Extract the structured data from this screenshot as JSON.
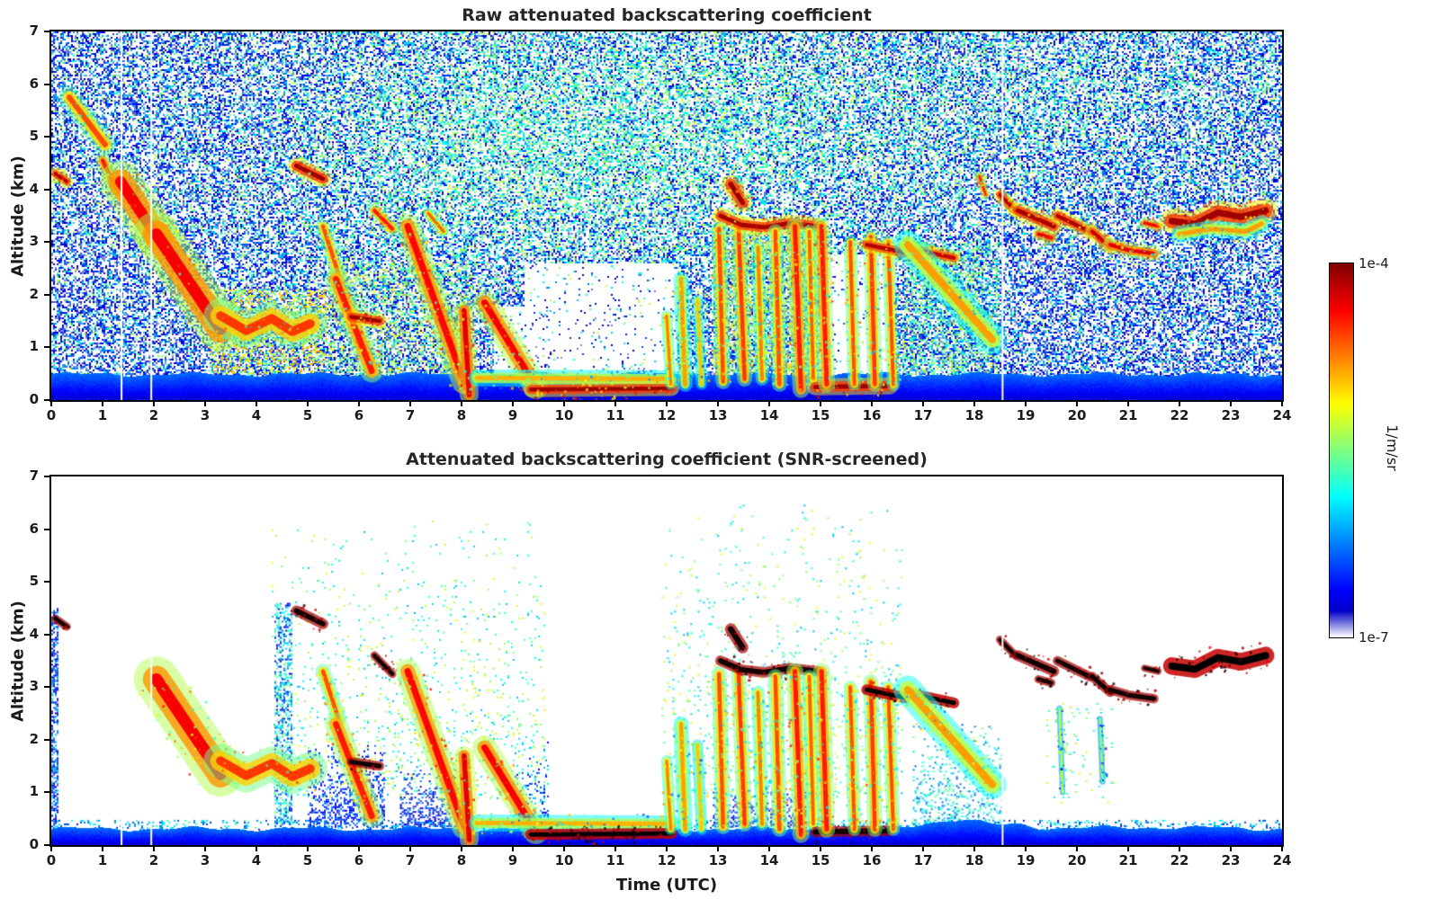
{
  "chart_data": {
    "type": "heatmap",
    "description": "Lidar attenuated backscatter time-height curtain plots, jet colormap with white floor",
    "panels": [
      {
        "id": "raw",
        "title": "Raw attenuated backscattering coefficient"
      },
      {
        "id": "screened",
        "title": "Attenuated backscattering coefficient (SNR-screened)"
      }
    ],
    "xlabel": "Time (UTC)",
    "ylabel": "Altitude (km)",
    "xlim": [
      0,
      24
    ],
    "ylim": [
      0,
      7
    ],
    "xticks": [
      "0",
      "1",
      "2",
      "3",
      "4",
      "5",
      "6",
      "7",
      "8",
      "9",
      "10",
      "11",
      "12",
      "13",
      "14",
      "15",
      "16",
      "17",
      "18",
      "19",
      "20",
      "21",
      "22",
      "23",
      "24"
    ],
    "yticks": [
      "0",
      "1",
      "2",
      "3",
      "4",
      "5",
      "6",
      "7"
    ],
    "colorbar": {
      "label": "1/m/sr",
      "max": "1e-4",
      "min": "1e-7",
      "colormap": "jet-white-floor"
    },
    "gaps": [
      1.37,
      1.95,
      18.55
    ],
    "surface_band": {
      "top": {
        "h": 0.48,
        "bumps": []
      },
      "bottom": {
        "h": 0.3,
        "bumps": [
          {
            "cx": 17.6,
            "s": 0.9,
            "a": 0.16
          },
          {
            "cx": 18.9,
            "s": 0.35,
            "a": 0.07
          },
          {
            "cx": 21.5,
            "s": 1.5,
            "a": 0.03
          }
        ]
      }
    },
    "noise": {
      "top": {
        "base_p": 0.52,
        "white_holes": [
          {
            "x": [
              9.2,
              12.2
            ],
            "y": [
              0,
              2.6
            ]
          },
          {
            "x": [
              8.6,
              9.2
            ],
            "y": [
              0,
              1.8
            ]
          },
          {
            "x": [
              14.95,
              16.45
            ],
            "y": [
              0.3,
              2.8
            ]
          }
        ],
        "green_bumps": [
          {
            "cx": 10,
            "cy": 4.8,
            "sx": 5.5,
            "sy": 2.4,
            "a": 1.0
          },
          {
            "cx": 19,
            "cy": 5.8,
            "sx": 6,
            "sy": 1.6,
            "a": 0.5
          }
        ],
        "regions": [
          {
            "x": [
              3.1,
              5.35
            ],
            "y": [
              0.5,
              2.1
            ],
            "p": 0.3,
            "t": [
              0.45,
              0.75
            ]
          },
          {
            "x": [
              5.4,
              8.15
            ],
            "y": [
              0.4,
              2.6
            ],
            "p": 0.22,
            "t": [
              0.4,
              0.68
            ]
          },
          {
            "x": [
              12.9,
              15.0
            ],
            "y": [
              0.3,
              3.2
            ],
            "p": 0.3,
            "t": [
              0.45,
              0.72
            ]
          },
          {
            "x": [
              16.6,
              18.45
            ],
            "y": [
              0.5,
              3.0
            ],
            "p": 0.28,
            "t": [
              0.35,
              0.6
            ]
          }
        ]
      },
      "bottom": {
        "regions": [
          {
            "x": [
              0,
              24
            ],
            "y": [
              0.28,
              0.48
            ],
            "p": 0.2,
            "t": [
              0.15,
              0.45
            ]
          },
          {
            "x": [
              0,
              0.14
            ],
            "y": [
              0,
              4.5
            ],
            "p": 0.55,
            "t": [
              0.05,
              0.35
            ]
          },
          {
            "x": [
              4.3,
              9.6
            ],
            "y": [
              0.9,
              6.2
            ],
            "p": 0.07,
            "t": [
              0.3,
              0.62
            ],
            "fade": 1
          },
          {
            "x": [
              11.9,
              16.6
            ],
            "y": [
              0.9,
              6.5
            ],
            "p": 0.07,
            "t": [
              0.3,
              0.62
            ],
            "fade": 1
          },
          {
            "x": [
              4.35,
              4.7
            ],
            "y": [
              0.4,
              4.6
            ],
            "p": 0.45,
            "t": [
              0.1,
              0.5
            ]
          },
          {
            "x": [
              5.0,
              6.5
            ],
            "y": [
              0.35,
              1.9
            ],
            "p": 0.5,
            "t": [
              0.04,
              0.28
            ],
            "fade": 1
          },
          {
            "x": [
              6.8,
              7.95
            ],
            "y": [
              0.35,
              1.5
            ],
            "p": 0.45,
            "t": [
              0.04,
              0.28
            ],
            "fade": 1
          },
          {
            "x": [
              12.9,
              14.7
            ],
            "y": [
              0.35,
              1.15
            ],
            "p": 0.45,
            "t": [
              0.04,
              0.28
            ],
            "fade": 1
          },
          {
            "x": [
              16.8,
              18.55
            ],
            "y": [
              0.35,
              2.3
            ],
            "p": 0.3,
            "t": [
              0.2,
              0.5
            ],
            "fade": 1
          },
          {
            "x": [
              19.4,
              20.7
            ],
            "y": [
              0.8,
              2.7
            ],
            "p": 0.04,
            "t": [
              0.35,
              0.6
            ]
          },
          {
            "x": [
              9.0,
              9.7
            ],
            "y": [
              0.4,
              2.0
            ],
            "p": 0.25,
            "t": [
              0.1,
              0.4
            ],
            "fade": 1
          }
        ]
      }
    },
    "features": [
      {
        "p": "t",
        "x": [
          0.35,
          1.05
        ],
        "y": [
          5.75,
          4.85
        ],
        "w": 11,
        "t": 0.8
      },
      {
        "p": "a",
        "x": [
          0.08,
          0.3
        ],
        "y": [
          4.3,
          4.15
        ],
        "w": 7,
        "t": 0.95,
        "bt": "black"
      },
      {
        "p": "t",
        "x": [
          1.0,
          1.3
        ],
        "y": [
          4.55,
          3.95
        ],
        "w": 8,
        "t": 0.85
      },
      {
        "p": "t",
        "x": [
          1.35,
          2.1
        ],
        "y": [
          4.15,
          3.05
        ],
        "w": 22,
        "t": 0.88
      },
      {
        "p": "a",
        "x": [
          2.05,
          3.3
        ],
        "y": [
          3.15,
          1.35
        ],
        "w": 24,
        "t": 0.88
      },
      {
        "p": "a",
        "pts": [
          [
            3.3,
            1.6
          ],
          [
            3.8,
            1.32
          ],
          [
            4.3,
            1.55
          ],
          [
            4.7,
            1.3
          ],
          [
            5.05,
            1.45
          ]
        ],
        "w": 18,
        "t": 0.82
      },
      {
        "p": "a",
        "x": [
          4.78,
          5.3
        ],
        "y": [
          4.45,
          4.2
        ],
        "w": 9,
        "t": 0.97,
        "bt": "black"
      },
      {
        "p": "a",
        "x": [
          5.3,
          5.6
        ],
        "y": [
          3.3,
          2.4
        ],
        "w": 8,
        "t": 0.8
      },
      {
        "p": "a",
        "x": [
          5.55,
          6.25
        ],
        "y": [
          2.3,
          0.55
        ],
        "w": 12,
        "t": 0.85
      },
      {
        "p": "a",
        "x": [
          5.85,
          6.4
        ],
        "y": [
          1.58,
          1.5
        ],
        "w": 8,
        "t": 0.97,
        "bt": "black"
      },
      {
        "p": "a",
        "x": [
          6.3,
          6.65
        ],
        "y": [
          3.6,
          3.25
        ],
        "w": 7,
        "t": 0.85,
        "bt": "black"
      },
      {
        "p": "a",
        "x": [
          6.95,
          8.05
        ],
        "y": [
          3.3,
          0.35
        ],
        "w": 13,
        "t": 0.87
      },
      {
        "p": "t",
        "x": [
          7.35,
          7.65
        ],
        "y": [
          3.55,
          3.2
        ],
        "w": 6,
        "t": 0.78
      },
      {
        "p": "a",
        "x": [
          8.05,
          8.15
        ],
        "y": [
          1.7,
          0.1
        ],
        "w": 10,
        "t": 0.9
      },
      {
        "p": "a",
        "x": [
          8.45,
          9.45
        ],
        "y": [
          1.85,
          0.25
        ],
        "w": 13,
        "t": 0.88
      },
      {
        "p": "a",
        "x": [
          8.3,
          12.1
        ],
        "y": [
          0.42,
          0.4
        ],
        "w": 9,
        "t": 0.7
      },
      {
        "p": "a",
        "x": [
          9.35,
          12.1
        ],
        "y": [
          0.2,
          0.22
        ],
        "w": 8,
        "t": 0.97,
        "bt": "blackred"
      },
      {
        "p": "a",
        "x": [
          12.0,
          12.08
        ],
        "y": [
          1.6,
          0.3
        ],
        "w": 6,
        "t": 0.75
      },
      {
        "p": "a",
        "x": [
          12.28,
          12.36
        ],
        "y": [
          2.3,
          0.3
        ],
        "w": 8,
        "t": 0.72
      },
      {
        "p": "a",
        "x": [
          12.6,
          12.68
        ],
        "y": [
          1.9,
          0.3
        ],
        "w": 6,
        "t": 0.68
      },
      {
        "p": "a",
        "x": [
          13.02,
          13.1
        ],
        "y": [
          3.25,
          0.35
        ],
        "w": 8,
        "t": 0.8
      },
      {
        "p": "a",
        "x": [
          13.4,
          13.52
        ],
        "y": [
          3.3,
          0.4
        ],
        "w": 8,
        "t": 0.82
      },
      {
        "p": "a",
        "x": [
          13.25,
          13.48
        ],
        "y": [
          4.1,
          3.75
        ],
        "w": 10,
        "t": 0.97,
        "bt": "black"
      },
      {
        "p": "a",
        "pts": [
          [
            13.05,
            3.5
          ],
          [
            13.45,
            3.33
          ],
          [
            13.9,
            3.28
          ],
          [
            14.4,
            3.36
          ],
          [
            14.95,
            3.3
          ]
        ],
        "w": 9,
        "t": 0.96,
        "bt": "black"
      },
      {
        "p": "a",
        "x": [
          13.78,
          13.86
        ],
        "y": [
          2.9,
          0.4
        ],
        "w": 7,
        "t": 0.75
      },
      {
        "p": "a",
        "x": [
          14.12,
          14.2
        ],
        "y": [
          3.2,
          0.3
        ],
        "w": 8,
        "t": 0.8
      },
      {
        "p": "a",
        "x": [
          14.5,
          14.62
        ],
        "y": [
          3.3,
          0.2
        ],
        "w": 9,
        "t": 0.85
      },
      {
        "p": "a",
        "x": [
          14.78,
          14.86
        ],
        "y": [
          3.2,
          0.4
        ],
        "w": 7,
        "t": 0.78
      },
      {
        "p": "a",
        "x": [
          14.9,
          16.35
        ],
        "y": [
          0.25,
          0.27
        ],
        "w": 9,
        "t": 0.97,
        "bt": "black"
      },
      {
        "p": "a",
        "x": [
          15.02,
          15.12
        ],
        "y": [
          3.3,
          0.3
        ],
        "w": 9,
        "t": 0.85
      },
      {
        "p": "a",
        "x": [
          15.58,
          15.66
        ],
        "y": [
          3.0,
          0.3
        ],
        "w": 7,
        "t": 0.8
      },
      {
        "p": "a",
        "x": [
          15.98,
          16.06
        ],
        "y": [
          3.1,
          0.3
        ],
        "w": 8,
        "t": 0.82
      },
      {
        "p": "a",
        "x": [
          16.32,
          16.42
        ],
        "y": [
          3.0,
          0.3
        ],
        "w": 7,
        "t": 0.8
      },
      {
        "p": "a",
        "x": [
          15.9,
          16.65
        ],
        "y": [
          2.95,
          2.8
        ],
        "w": 8,
        "t": 0.95,
        "bt": "blackred"
      },
      {
        "p": "a",
        "x": [
          16.75,
          17.6
        ],
        "y": [
          2.88,
          2.7
        ],
        "w": 8,
        "t": 0.93,
        "bt": "blackred"
      },
      {
        "p": "a",
        "x": [
          16.7,
          18.35
        ],
        "y": [
          2.95,
          1.15
        ],
        "w": 15,
        "t": 0.72
      },
      {
        "p": "t",
        "x": [
          18.1,
          18.22
        ],
        "y": [
          4.25,
          3.9
        ],
        "w": 5,
        "t": 0.85
      },
      {
        "p": "a",
        "x": [
          18.5,
          18.8
        ],
        "y": [
          3.9,
          3.6
        ],
        "w": 7,
        "t": 0.95,
        "bt": "black"
      },
      {
        "p": "a",
        "x": [
          18.85,
          19.55
        ],
        "y": [
          3.6,
          3.3
        ],
        "w": 9,
        "t": 0.96,
        "bt": "black"
      },
      {
        "p": "a",
        "x": [
          19.25,
          19.5
        ],
        "y": [
          3.15,
          3.08
        ],
        "w": 7,
        "t": 0.9,
        "bt": "black"
      },
      {
        "p": "a",
        "x": [
          19.62,
          20.25
        ],
        "y": [
          3.5,
          3.2
        ],
        "w": 8,
        "t": 0.95,
        "bt": "black"
      },
      {
        "p": "a",
        "x": [
          20.3,
          20.65
        ],
        "y": [
          3.2,
          2.9
        ],
        "w": 8,
        "t": 0.93,
        "bt": "black"
      },
      {
        "p": "a",
        "pts": [
          [
            20.65,
            2.95
          ],
          [
            21.0,
            2.85
          ],
          [
            21.5,
            2.78
          ]
        ],
        "w": 8,
        "t": 0.9,
        "bt": "black"
      },
      {
        "p": "a",
        "x": [
          21.32,
          21.58
        ],
        "y": [
          3.36,
          3.3
        ],
        "w": 6,
        "t": 0.88,
        "bt": "black"
      },
      {
        "p": "a",
        "pts": [
          [
            21.85,
            3.4
          ],
          [
            22.3,
            3.34
          ],
          [
            22.75,
            3.56
          ],
          [
            23.2,
            3.48
          ],
          [
            23.68,
            3.6
          ]
        ],
        "w": 13,
        "t": 0.97,
        "bt": "blackred"
      },
      {
        "p": "t",
        "pts": [
          [
            22.0,
            3.15
          ],
          [
            22.6,
            3.25
          ],
          [
            23.3,
            3.2
          ],
          [
            23.6,
            3.35
          ]
        ],
        "w": 9,
        "t": 0.72
      },
      {
        "p": "b",
        "x": [
          19.66,
          19.72
        ],
        "y": [
          2.6,
          1.0
        ],
        "w": 3,
        "t": 0.58
      },
      {
        "p": "b",
        "x": [
          20.45,
          20.5
        ],
        "y": [
          2.4,
          1.2
        ],
        "w": 3,
        "t": 0.55
      }
    ]
  }
}
